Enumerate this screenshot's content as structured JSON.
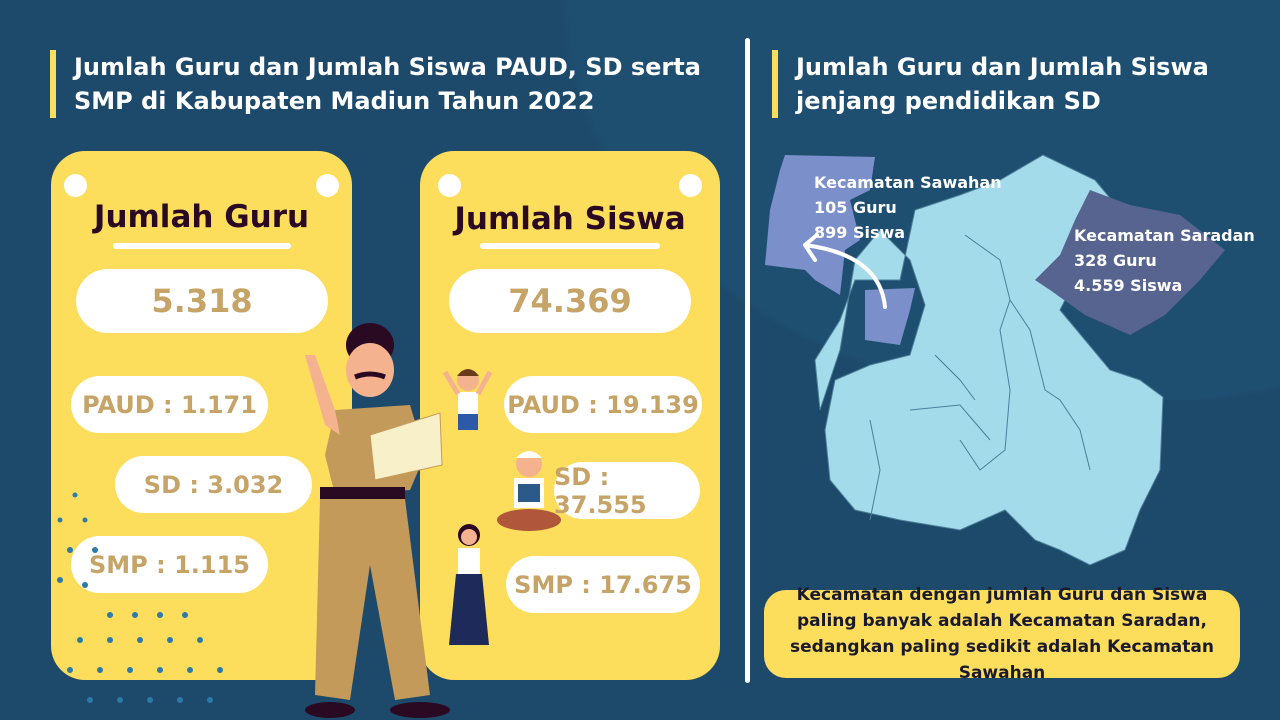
{
  "left_title": "Jumlah Guru dan Jumlah Siswa PAUD, SD serta SMP di Kabupaten Madiun Tahun 2022",
  "right_title": "Jumlah Guru dan Jumlah Siswa jenjang pendidikan SD",
  "guru_card": {
    "title": "Jumlah Guru",
    "total": "5.318",
    "paud": "PAUD : 1.171",
    "sd": "SD : 3.032",
    "smp": "SMP : 1.115"
  },
  "siswa_card": {
    "title": "Jumlah Siswa",
    "total": "74.369",
    "paud": "PAUD : 19.139",
    "sd": "SD : 37.555",
    "smp": "SMP : 17.675"
  },
  "map": {
    "sawahan": {
      "name": "Kecamatan Sawahan",
      "guru": "105 Guru",
      "siswa": "899 Siswa",
      "color": "#7b8fca"
    },
    "saradan": {
      "name": "Kecamatan Saradan",
      "guru": "328 Guru",
      "siswa": "4.559 Siswa",
      "color": "#56648f"
    },
    "base_color": "#a3dbeb"
  },
  "note": "Kecamatan dengan jumlah Guru dan Siswa paling banyak adalah Kecamatan Saradan, sedangkan paling sedikit adalah Kecamatan Sawahan",
  "colors": {
    "background": "#1d4a6b",
    "accent": "#fddd5c",
    "number": "#c6a468"
  }
}
